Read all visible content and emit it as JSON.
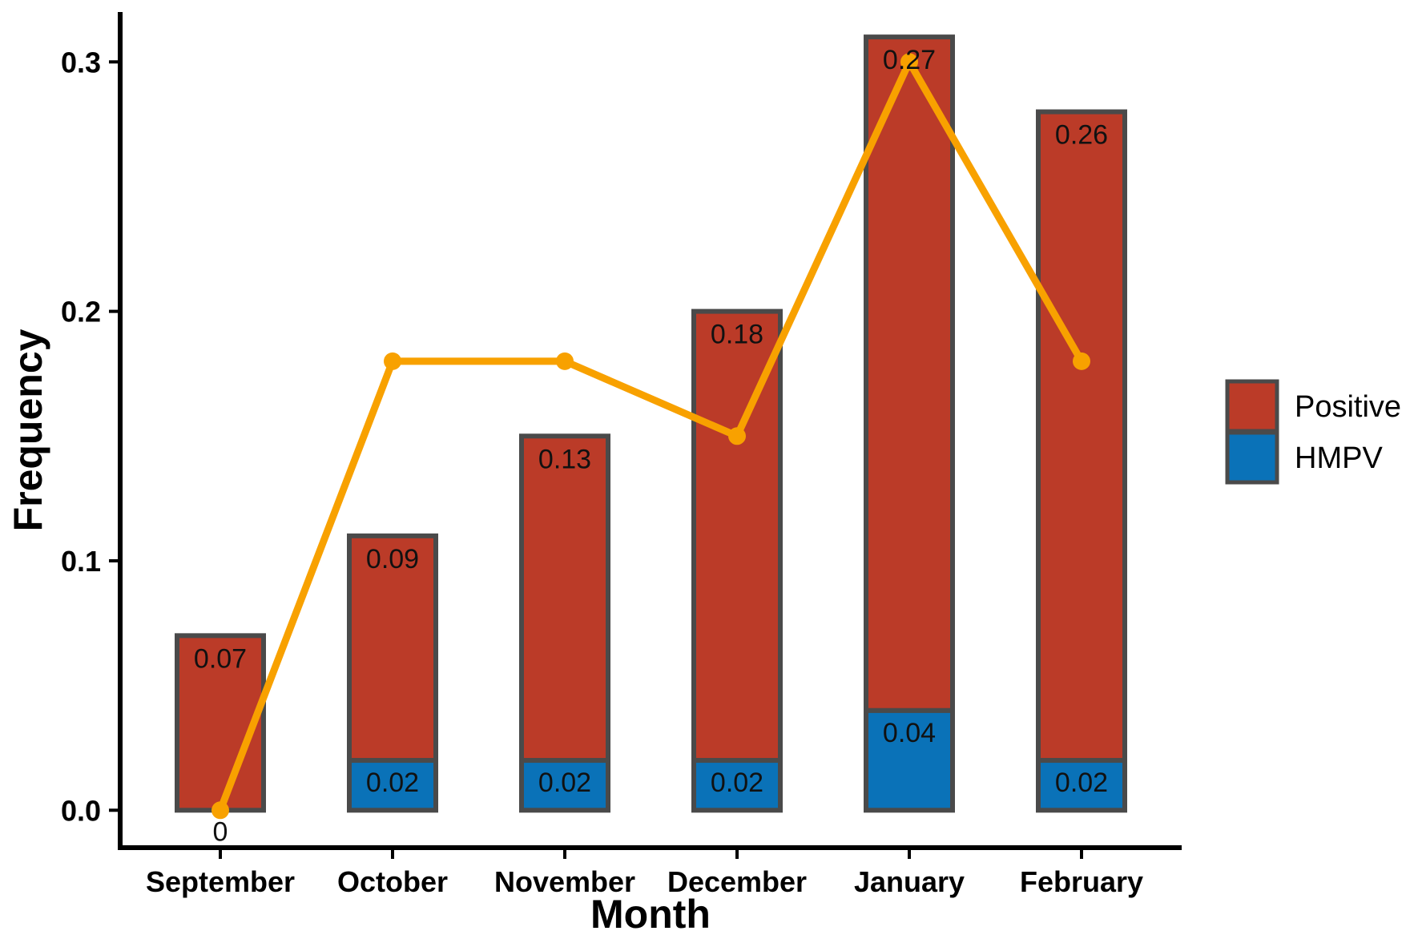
{
  "chart_data": {
    "type": "bar",
    "stacked": true,
    "xlabel": "Month",
    "ylabel": "Frequency",
    "categories": [
      "September",
      "October",
      "November",
      "December",
      "January",
      "February"
    ],
    "ylim": [
      -0.015,
      0.32
    ],
    "yticks": [
      0.0,
      0.1,
      0.2,
      0.3
    ],
    "ytick_labels": [
      "0.0",
      "0.1",
      "0.2",
      "0.3"
    ],
    "series": [
      {
        "name": "HMPV",
        "color": "#0a72b8",
        "values": [
          0,
          0.02,
          0.02,
          0.02,
          0.04,
          0.02
        ],
        "labels": [
          "",
          "0.02",
          "0.02",
          "0.02",
          "0.04",
          "0.02"
        ]
      },
      {
        "name": "Positive",
        "color": "#bb3b28",
        "values": [
          0.07,
          0.09,
          0.13,
          0.18,
          0.27,
          0.26
        ],
        "labels": [
          "0.07",
          "0.09",
          "0.13",
          "0.18",
          "0.27",
          "0.26"
        ]
      }
    ],
    "line": {
      "color": "#f8a100",
      "values": [
        0.0,
        0.18,
        0.18,
        0.15,
        0.3,
        0.18
      ]
    },
    "extra_labels": [
      "0",
      "",
      "",
      "",
      "",
      ""
    ],
    "bar_outline_color": "#4a4a4a",
    "legend": {
      "position": "right",
      "items": [
        {
          "name": "Positive",
          "color": "#bb3b28"
        },
        {
          "name": "HMPV",
          "color": "#0a72b8"
        }
      ]
    },
    "grid": false
  }
}
